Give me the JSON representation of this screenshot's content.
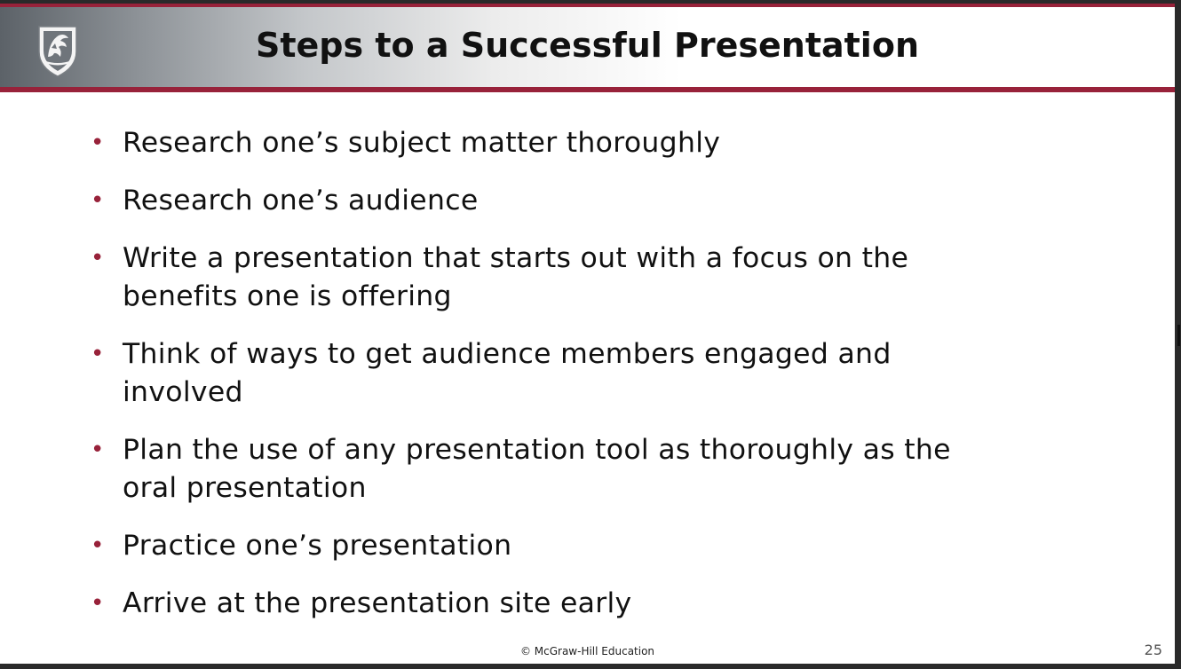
{
  "slide": {
    "title": "Steps to a Successful Presentation",
    "logo_icon": "cougar-shield-logo-icon",
    "bullets": [
      {
        "line1": "Research one’s subject matter thoroughly",
        "line2": ""
      },
      {
        "line1": "Research one’s audience",
        "line2": ""
      },
      {
        "line1": "Write a presentation that starts out with a focus on the",
        "line2": "benefits one is offering"
      },
      {
        "line1": "Think of ways to get audience members engaged and",
        "line2": "involved"
      },
      {
        "line1": "Plan the use of any presentation tool as thoroughly as the",
        "line2": "oral presentation"
      },
      {
        "line1": "Practice one’s presentation",
        "line2": ""
      },
      {
        "line1": "Arrive at the presentation site early",
        "line2": ""
      }
    ],
    "bullet_glyph": "•",
    "footer": "© McGraw-Hill Education",
    "page_number": "25"
  },
  "colors": {
    "accent": "#98223a",
    "text": "#111111",
    "background": "#ffffff"
  }
}
